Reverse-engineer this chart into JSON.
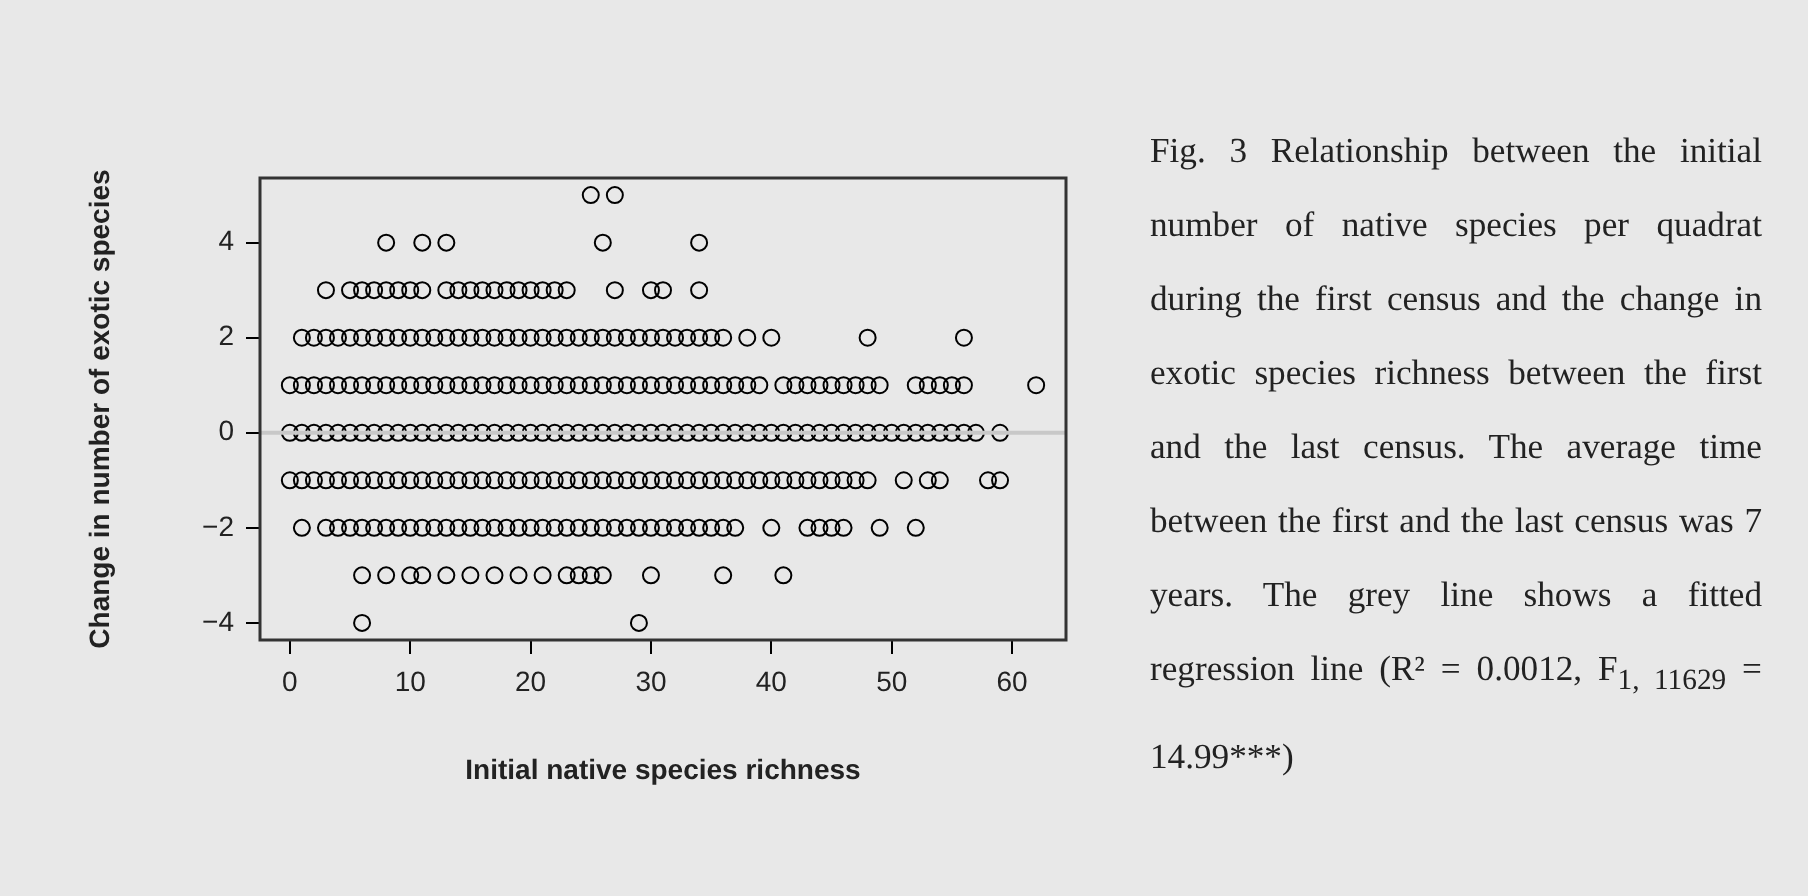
{
  "chart_data": {
    "type": "scatter",
    "xlabel": "Initial native species richness",
    "ylabel": "Change in number of exotic species",
    "xlim": [
      -2.48,
      64.48
    ],
    "ylim": [
      -4.36,
      5.36
    ],
    "xticks": [
      0,
      10,
      20,
      30,
      40,
      50,
      60
    ],
    "yticks": [
      -4,
      -2,
      0,
      2,
      4
    ],
    "grid": false,
    "legend": false,
    "series": [
      {
        "marker": "circle",
        "color": "#000000",
        "x": [
          25,
          27,
          8,
          11,
          13,
          26,
          34,
          3,
          5,
          6,
          7,
          8,
          9,
          10,
          11,
          13,
          14,
          15,
          16,
          17,
          18,
          19,
          20,
          21,
          22,
          23,
          27,
          30,
          31,
          34,
          1,
          2,
          3,
          4,
          5,
          6,
          7,
          8,
          9,
          10,
          11,
          12,
          13,
          14,
          15,
          16,
          17,
          18,
          19,
          20,
          21,
          22,
          23,
          24,
          25,
          26,
          27,
          28,
          29,
          30,
          31,
          32,
          33,
          34,
          35,
          36,
          38,
          40,
          48,
          56,
          0,
          1,
          2,
          3,
          4,
          5,
          6,
          7,
          8,
          9,
          10,
          11,
          12,
          13,
          14,
          15,
          16,
          17,
          18,
          19,
          20,
          21,
          22,
          23,
          24,
          25,
          26,
          27,
          28,
          29,
          30,
          31,
          32,
          33,
          34,
          35,
          36,
          37,
          38,
          39,
          41,
          42,
          43,
          44,
          45,
          46,
          47,
          48,
          49,
          52,
          53,
          54,
          55,
          56,
          62,
          0,
          1,
          2,
          3,
          4,
          5,
          6,
          7,
          8,
          9,
          10,
          11,
          12,
          13,
          14,
          15,
          16,
          17,
          18,
          19,
          20,
          21,
          22,
          23,
          24,
          25,
          26,
          27,
          28,
          29,
          30,
          31,
          32,
          33,
          34,
          35,
          36,
          37,
          38,
          39,
          40,
          41,
          42,
          43,
          44,
          45,
          46,
          47,
          48,
          49,
          50,
          51,
          52,
          53,
          54,
          55,
          56,
          57,
          59,
          0,
          1,
          2,
          3,
          4,
          5,
          6,
          7,
          8,
          9,
          10,
          11,
          12,
          13,
          14,
          15,
          16,
          17,
          18,
          19,
          20,
          21,
          22,
          23,
          24,
          25,
          26,
          27,
          28,
          29,
          30,
          31,
          32,
          33,
          34,
          35,
          36,
          37,
          38,
          39,
          40,
          41,
          42,
          43,
          44,
          45,
          46,
          47,
          48,
          51,
          53,
          54,
          58,
          59,
          1,
          3,
          4,
          5,
          6,
          7,
          8,
          9,
          10,
          11,
          12,
          13,
          14,
          15,
          16,
          17,
          18,
          19,
          20,
          21,
          22,
          23,
          24,
          25,
          26,
          27,
          28,
          29,
          30,
          31,
          32,
          33,
          34,
          35,
          36,
          37,
          40,
          43,
          44,
          45,
          46,
          49,
          52,
          6,
          8,
          10,
          11,
          13,
          15,
          17,
          19,
          21,
          23,
          24,
          25,
          26,
          30,
          36,
          41,
          6,
          29
        ],
        "values": [
          5,
          5,
          4,
          4,
          4,
          4,
          4,
          3,
          3,
          3,
          3,
          3,
          3,
          3,
          3,
          3,
          3,
          3,
          3,
          3,
          3,
          3,
          3,
          3,
          3,
          3,
          3,
          3,
          3,
          3,
          2,
          2,
          2,
          2,
          2,
          2,
          2,
          2,
          2,
          2,
          2,
          2,
          2,
          2,
          2,
          2,
          2,
          2,
          2,
          2,
          2,
          2,
          2,
          2,
          2,
          2,
          2,
          2,
          2,
          2,
          2,
          2,
          2,
          2,
          2,
          2,
          2,
          2,
          2,
          2,
          1,
          1,
          1,
          1,
          1,
          1,
          1,
          1,
          1,
          1,
          1,
          1,
          1,
          1,
          1,
          1,
          1,
          1,
          1,
          1,
          1,
          1,
          1,
          1,
          1,
          1,
          1,
          1,
          1,
          1,
          1,
          1,
          1,
          1,
          1,
          1,
          1,
          1,
          1,
          1,
          1,
          1,
          1,
          1,
          1,
          1,
          1,
          1,
          1,
          1,
          1,
          1,
          1,
          1,
          1,
          0,
          0,
          0,
          0,
          0,
          0,
          0,
          0,
          0,
          0,
          0,
          0,
          0,
          0,
          0,
          0,
          0,
          0,
          0,
          0,
          0,
          0,
          0,
          0,
          0,
          0,
          0,
          0,
          0,
          0,
          0,
          0,
          0,
          0,
          0,
          0,
          0,
          0,
          0,
          0,
          0,
          0,
          0,
          0,
          0,
          0,
          0,
          0,
          0,
          0,
          0,
          0,
          0,
          0,
          0,
          0,
          0,
          0,
          0,
          -1,
          -1,
          -1,
          -1,
          -1,
          -1,
          -1,
          -1,
          -1,
          -1,
          -1,
          -1,
          -1,
          -1,
          -1,
          -1,
          -1,
          -1,
          -1,
          -1,
          -1,
          -1,
          -1,
          -1,
          -1,
          -1,
          -1,
          -1,
          -1,
          -1,
          -1,
          -1,
          -1,
          -1,
          -1,
          -1,
          -1,
          -1,
          -1,
          -1,
          -1,
          -1,
          -1,
          -1,
          -1,
          -1,
          -1,
          -1,
          -1,
          -1,
          -1,
          -1,
          -1,
          -1,
          -2,
          -2,
          -2,
          -2,
          -2,
          -2,
          -2,
          -2,
          -2,
          -2,
          -2,
          -2,
          -2,
          -2,
          -2,
          -2,
          -2,
          -2,
          -2,
          -2,
          -2,
          -2,
          -2,
          -2,
          -2,
          -2,
          -2,
          -2,
          -2,
          -2,
          -2,
          -2,
          -2,
          -2,
          -2,
          -2,
          -2,
          -2,
          -2,
          -2,
          -2,
          -2,
          -2,
          -3,
          -3,
          -3,
          -3,
          -3,
          -3,
          -3,
          -3,
          -3,
          -3,
          -3,
          -3,
          -3,
          -3,
          -3,
          -3,
          -4,
          -4
        ]
      },
      {
        "type": "line",
        "marker": "none",
        "color": "#c8c8c8",
        "x": [
          -2.48,
          64.48
        ],
        "values": [
          0,
          0
        ]
      }
    ],
    "annotations": [
      "Fig. 3 Relationship between the initial number of native species per quadrat during the first census and the change in exotic species richness between the first and the last census. The average time between the first and the last census was 7 years. The grey line shows a fitted regression line (R² = 0.0012, F$_{1, 11629}$ = 14.99***)"
    ]
  }
}
